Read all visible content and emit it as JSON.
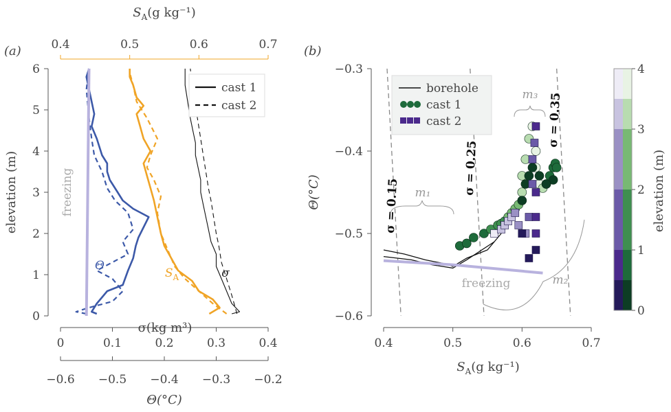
{
  "panel_a": {
    "label": "(a)",
    "top_axis": {
      "label": "S_A(g kg⁻¹)",
      "ticks": [
        "0.4",
        "0.5",
        "0.6",
        "0.7"
      ],
      "range": [
        0.4,
        0.7
      ],
      "color": "#f0a426"
    },
    "y_axis": {
      "label": "elevation (m)",
      "ticks": [
        "0",
        "1",
        "2",
        "3",
        "4",
        "5",
        "6"
      ],
      "range": [
        0,
        6
      ]
    },
    "bottom_axis_sigma": {
      "label": "σ(kg m³)",
      "ticks": [
        "0",
        "0.1",
        "0.2",
        "0.3",
        "0.4"
      ],
      "range": [
        0,
        0.4
      ]
    },
    "bottom_axis_theta": {
      "label": "Θ(°C)",
      "ticks": [
        "−0.6",
        "−0.5",
        "−0.4",
        "−0.3",
        "−0.2"
      ],
      "range": [
        -0.6,
        -0.2
      ],
      "color": "#3c59a8"
    },
    "legend": [
      {
        "label": "cast 1",
        "style": "solid"
      },
      {
        "label": "cast 2",
        "style": "dashed"
      }
    ],
    "annotations": {
      "freezing": "freezing",
      "theta": "Θ",
      "sa": "S_A",
      "sigma": "σ"
    }
  },
  "panel_b": {
    "label": "(b)",
    "x_axis": {
      "label": "S_A(g kg⁻¹)",
      "ticks": [
        "0.4",
        "0.5",
        "0.6",
        "0.7"
      ],
      "range": [
        0.4,
        0.7
      ]
    },
    "y_axis": {
      "label": "Θ(°C)",
      "ticks": [
        "−0.3",
        "−0.4",
        "−0.5",
        "−0.6"
      ],
      "range": [
        -0.6,
        -0.3
      ]
    },
    "legend": [
      {
        "label": "borehole"
      },
      {
        "label": "cast 1"
      },
      {
        "label": "cast 2"
      }
    ],
    "sigma_contours": [
      "σ = 0.15",
      "σ = 0.25",
      "σ = 0.35"
    ],
    "mixing_labels": [
      "m₁",
      "m₂",
      "m₃"
    ],
    "freezing_label": "freezing",
    "colorbar": {
      "label": "elevation (m)",
      "ticks": [
        "0",
        "1",
        "2",
        "3",
        "4"
      ]
    }
  },
  "colors": {
    "theta": "#3c59a8",
    "salinity": "#f0a426",
    "sigma": "#111111",
    "freezing": "#b8b2de",
    "cast1": "#1f6b3a",
    "cast2": "#4b2a8c",
    "axis": "#555555"
  },
  "chart_data": [
    {
      "type": "line",
      "title": "(a)",
      "ylabel": "elevation (m)",
      "ylim": [
        0,
        6
      ],
      "series": [
        {
          "name": "cast 1",
          "variable": "Θ",
          "x_units": "°C",
          "x": [
            -0.53,
            -0.54,
            -0.53,
            -0.52,
            -0.51,
            -0.48,
            -0.47,
            -0.46,
            -0.455,
            -0.45,
            -0.44,
            -0.43,
            -0.46,
            -0.48,
            -0.49,
            -0.505,
            -0.51,
            -0.51,
            -0.52,
            -0.525,
            -0.53,
            -0.54,
            -0.535,
            -0.54,
            -0.545,
            -0.55,
            -0.545
          ],
          "y": [
            0.05,
            0.1,
            0.3,
            0.45,
            0.6,
            0.75,
            1.1,
            1.4,
            1.7,
            1.9,
            2.15,
            2.4,
            2.6,
            2.8,
            3.0,
            3.3,
            3.5,
            3.7,
            3.9,
            4.1,
            4.3,
            4.6,
            4.9,
            5.2,
            5.5,
            5.8,
            6.0
          ]
        },
        {
          "name": "cast 2",
          "variable": "Θ",
          "x_units": "°C",
          "x": [
            -0.55,
            -0.57,
            -0.545,
            -0.5,
            -0.48,
            -0.5,
            -0.53,
            -0.5,
            -0.47,
            -0.48,
            -0.46,
            -0.47,
            -0.495,
            -0.51,
            -0.52,
            -0.535,
            -0.54,
            -0.545,
            -0.55,
            -0.545
          ],
          "y": [
            0.05,
            0.1,
            0.2,
            0.35,
            0.6,
            0.9,
            1.1,
            1.3,
            1.5,
            1.8,
            2.1,
            2.5,
            2.8,
            3.1,
            3.5,
            3.9,
            4.3,
            4.8,
            5.5,
            6.0
          ]
        },
        {
          "name": "cast 1",
          "variable": "S_A",
          "x_units": "g kg⁻¹",
          "x": [
            0.615,
            0.63,
            0.62,
            0.6,
            0.59,
            0.57,
            0.56,
            0.55,
            0.545,
            0.54,
            0.535,
            0.53,
            0.525,
            0.52,
            0.53,
            0.52,
            0.515,
            0.51,
            0.52,
            0.51,
            0.505,
            0.5,
            0.5
          ],
          "y": [
            0.05,
            0.2,
            0.4,
            0.6,
            0.85,
            1.1,
            1.4,
            1.7,
            2.0,
            2.4,
            2.8,
            3.1,
            3.4,
            3.7,
            4.0,
            4.3,
            4.6,
            4.9,
            5.1,
            5.3,
            5.6,
            5.8,
            6.0
          ]
        },
        {
          "name": "cast 2",
          "variable": "S_A",
          "x_units": "g kg⁻¹",
          "x": [
            0.64,
            0.62,
            0.6,
            0.58,
            0.565,
            0.555,
            0.545,
            0.54,
            0.545,
            0.535,
            0.525,
            0.53,
            0.54,
            0.525,
            0.51,
            0.505,
            0.5,
            0.5
          ],
          "y": [
            0.05,
            0.3,
            0.6,
            0.9,
            1.2,
            1.6,
            2.0,
            2.5,
            2.9,
            3.3,
            3.6,
            3.9,
            4.3,
            4.8,
            5.2,
            5.6,
            5.9,
            6.0
          ]
        },
        {
          "name": "cast 1",
          "variable": "σ",
          "x_units": "kg m⁻³",
          "x": [
            0.33,
            0.345,
            0.33,
            0.32,
            0.31,
            0.3,
            0.3,
            0.29,
            0.285,
            0.28,
            0.275,
            0.27,
            0.27,
            0.265,
            0.26,
            0.26,
            0.255,
            0.25,
            0.245,
            0.24,
            0.24
          ],
          "y": [
            0.05,
            0.1,
            0.3,
            0.6,
            0.9,
            1.2,
            1.5,
            1.8,
            2.1,
            2.4,
            2.7,
            3.0,
            3.3,
            3.6,
            3.9,
            4.2,
            4.5,
            4.8,
            5.2,
            5.6,
            6.0
          ]
        },
        {
          "name": "cast 2",
          "variable": "σ",
          "x_units": "kg m⁻³",
          "x": [
            0.34,
            0.33,
            0.32,
            0.31,
            0.305,
            0.3,
            0.295,
            0.29,
            0.285,
            0.28,
            0.275,
            0.27,
            0.265,
            0.26,
            0.255,
            0.25
          ],
          "y": [
            0.05,
            0.5,
            0.9,
            1.3,
            1.7,
            2.0,
            2.4,
            2.8,
            3.1,
            3.5,
            3.9,
            4.3,
            4.7,
            5.1,
            5.5,
            6.0
          ]
        },
        {
          "name": "freezing",
          "variable": "Θ",
          "x_units": "°C",
          "x": [
            -0.55,
            -0.545
          ],
          "y": [
            0,
            6
          ]
        }
      ]
    },
    {
      "type": "scatter",
      "title": "(b)",
      "xlabel": "S_A(g kg⁻¹)",
      "ylabel": "Θ(°C)",
      "xlim": [
        0.4,
        0.7
      ],
      "ylim": [
        -0.6,
        -0.3
      ],
      "series": [
        {
          "name": "borehole",
          "style": "line",
          "x": [
            0.4,
            0.43,
            0.46,
            0.49,
            0.5,
            0.52,
            0.55,
            0.57
          ],
          "y": [
            -0.52,
            -0.525,
            -0.532,
            -0.537,
            -0.54,
            -0.53,
            -0.52,
            -0.5
          ]
        },
        {
          "name": "borehole",
          "style": "line",
          "x": [
            0.4,
            0.44,
            0.47,
            0.5,
            0.52,
            0.56
          ],
          "y": [
            -0.528,
            -0.532,
            -0.538,
            -0.542,
            -0.532,
            -0.51
          ]
        },
        {
          "name": "cast 1",
          "style": "circle",
          "x": [
            0.51,
            0.52,
            0.53,
            0.545,
            0.555,
            0.565,
            0.57,
            0.575,
            0.58,
            0.585,
            0.59,
            0.595,
            0.6,
            0.6,
            0.605,
            0.61,
            0.615,
            0.62,
            0.62,
            0.625,
            0.63,
            0.635,
            0.64,
            0.645,
            0.648,
            0.65,
            0.645,
            0.635,
            0.625,
            0.615,
            0.61,
            0.605,
            0.6
          ],
          "y": [
            -0.515,
            -0.512,
            -0.505,
            -0.5,
            -0.495,
            -0.49,
            -0.488,
            -0.485,
            -0.48,
            -0.475,
            -0.47,
            -0.465,
            -0.45,
            -0.43,
            -0.41,
            -0.385,
            -0.37,
            -0.4,
            -0.42,
            -0.44,
            -0.445,
            -0.44,
            -0.43,
            -0.42,
            -0.415,
            -0.42,
            -0.435,
            -0.44,
            -0.43,
            -0.42,
            -0.43,
            -0.44,
            -0.46
          ],
          "elevation": [
            0.5,
            0.6,
            0.8,
            1.0,
            1.2,
            1.4,
            1.6,
            1.8,
            2.0,
            2.2,
            2.4,
            2.6,
            2.8,
            3.0,
            3.2,
            3.4,
            3.6,
            3.8,
            4.0,
            4.0,
            3.0,
            2.0,
            1.0,
            0.8,
            0.6,
            0.4,
            0.3,
            0.2,
            0.2,
            0.1,
            0.1,
            0.1,
            0.1
          ]
        },
        {
          "name": "cast 2",
          "style": "square",
          "x": [
            0.56,
            0.57,
            0.575,
            0.58,
            0.585,
            0.59,
            0.595,
            0.6,
            0.605,
            0.61,
            0.615,
            0.615,
            0.618,
            0.62,
            0.62,
            0.62,
            0.62,
            0.62,
            0.61,
            0.6
          ],
          "y": [
            -0.5,
            -0.495,
            -0.49,
            -0.485,
            -0.48,
            -0.475,
            -0.49,
            -0.5,
            -0.5,
            -0.48,
            -0.44,
            -0.41,
            -0.39,
            -0.37,
            -0.45,
            -0.48,
            -0.5,
            -0.52,
            -0.53,
            -0.5
          ],
          "elevation": [
            3.6,
            3.4,
            3.2,
            3.0,
            2.8,
            2.6,
            2.4,
            2.2,
            2.0,
            1.8,
            1.6,
            1.4,
            1.2,
            1.0,
            0.8,
            0.6,
            0.4,
            0.2,
            0.1,
            0.3
          ]
        },
        {
          "name": "freezing",
          "style": "line",
          "x": [
            0.4,
            0.5,
            0.63
          ],
          "y": [
            -0.533,
            -0.538,
            -0.548
          ]
        },
        {
          "name": "σ = 0.15",
          "style": "dashed",
          "x": [
            0.405,
            0.425
          ],
          "y": [
            -0.3,
            -0.6
          ]
        },
        {
          "name": "σ = 0.25",
          "style": "dashed",
          "x": [
            0.525,
            0.545
          ],
          "y": [
            -0.3,
            -0.6
          ]
        },
        {
          "name": "σ = 0.35",
          "style": "dashed",
          "x": [
            0.65,
            0.67
          ],
          "y": [
            -0.3,
            -0.6
          ]
        }
      ]
    }
  ]
}
